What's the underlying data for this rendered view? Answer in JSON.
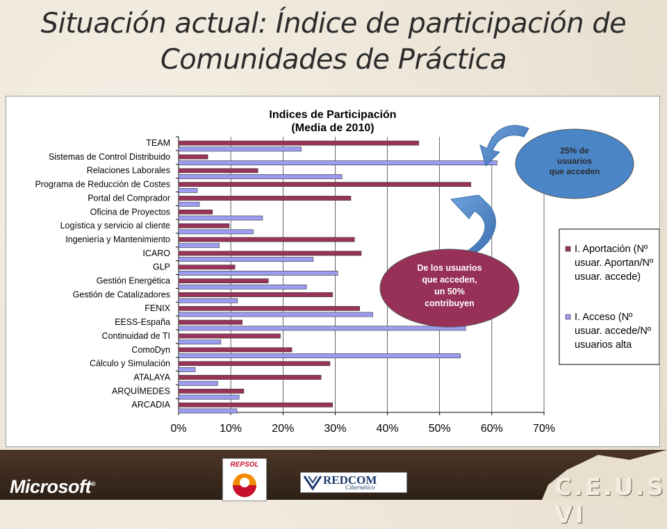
{
  "slide": {
    "title": "Situación actual: Índice de participación de Comunidades de Práctica"
  },
  "chart_data": {
    "type": "bar",
    "orientation": "horizontal",
    "title": "Indices de Participación (Media de 2010)",
    "title_lines": [
      "Indices de Participación",
      "(Media de 2010)"
    ],
    "categories": [
      "TEAM",
      "Sistemas de Control Distribuido",
      "Relaciones Laborales",
      "Programa de Reducción de Costes",
      "Portal del Comprador",
      "Oficina de Proyectos",
      "Logística y servicio al cliente",
      "Ingeniería y Mantenimiento",
      "ICARO",
      "GLP",
      "Gestión Energética",
      "Gestión de Catalizadores",
      "FENIX",
      "EESS-España",
      "Continuidad de TI",
      "ComoDyn",
      "Cálculo y Simulación",
      "ATALAYA",
      "ARQUÍMEDES",
      "ARCADIA"
    ],
    "series": [
      {
        "name": "I. Aportación (Nº usuar. Aportan/Nº usuar. accede)",
        "name_lines": [
          "I. Aportación (Nº",
          "usuar. Aportan/Nº",
          "usuar. accede)"
        ],
        "color": "#9a3358",
        "values": [
          0.46,
          0.056,
          0.152,
          0.56,
          0.33,
          0.065,
          0.097,
          0.337,
          0.35,
          0.108,
          0.172,
          0.295,
          0.347,
          0.122,
          0.195,
          0.217,
          0.29,
          0.273,
          0.125,
          0.295
        ]
      },
      {
        "name": "I. Acceso (Nº usuar. accede/Nº usuarios alta",
        "name_lines": [
          "I. Acceso (Nº",
          "usuar. accede/Nº",
          "usuarios alta"
        ],
        "color": "#9c9cf2",
        "values": [
          0.235,
          0.61,
          0.313,
          0.036,
          0.04,
          0.161,
          0.143,
          0.078,
          0.258,
          0.305,
          0.245,
          0.113,
          0.372,
          0.55,
          0.081,
          0.54,
          0.032,
          0.075,
          0.116,
          0.112
        ]
      }
    ],
    "xlim": [
      0,
      0.7
    ],
    "xticks": [
      "0%",
      "10%",
      "20%",
      "30%",
      "40%",
      "50%",
      "60%",
      "70%"
    ],
    "grid": true,
    "legend_position": "right",
    "annotations": [
      {
        "text_lines": [
          "25% de",
          "usuarios",
          "que acceden"
        ],
        "fill": "#4a86c7",
        "text_color": "#2a2a2a"
      },
      {
        "text_lines": [
          "De los usuarios",
          "que acceden,",
          "un 50%",
          "contribuyen"
        ],
        "fill": "#983158",
        "text_color": "#ffffff"
      }
    ]
  },
  "footer": {
    "microsoft": "Microsoft",
    "repsol": "REPSOL",
    "redcom": "REDCOM",
    "redcom_sub": "Cibernético",
    "ceus": "C.E.U.S VI"
  }
}
